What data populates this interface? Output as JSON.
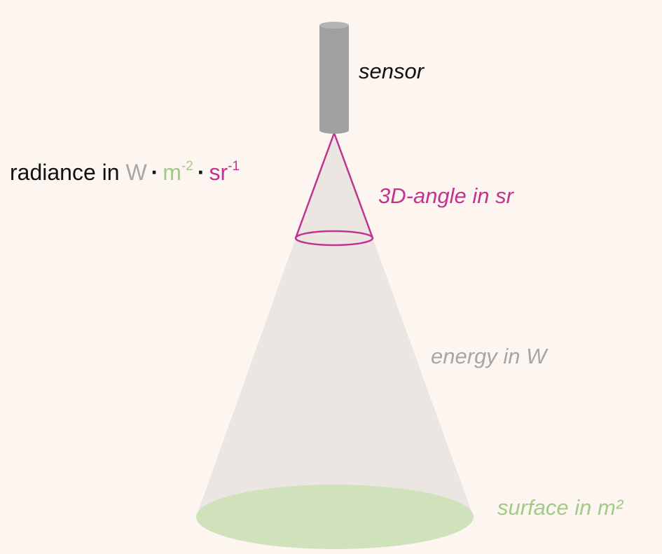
{
  "labels": {
    "sensor": "sensor",
    "angle": "3D-angle in sr",
    "energy": "energy in W",
    "surface": "surface in m²"
  },
  "formula": {
    "prefix": "radiance in ",
    "w": "W",
    "dot1": "·",
    "m": "m",
    "m_exp": "-2",
    "dot2": "·",
    "sr": "sr",
    "sr_exp": "-1"
  },
  "colors": {
    "background": "#fdf6f0",
    "sensor": "#a0a0a0",
    "beam": "#ebe6e2",
    "angle": "#c2338f",
    "surface": "#cfe2bc",
    "energy_text": "#a6a6a6",
    "surface_text": "#a3c98a"
  }
}
